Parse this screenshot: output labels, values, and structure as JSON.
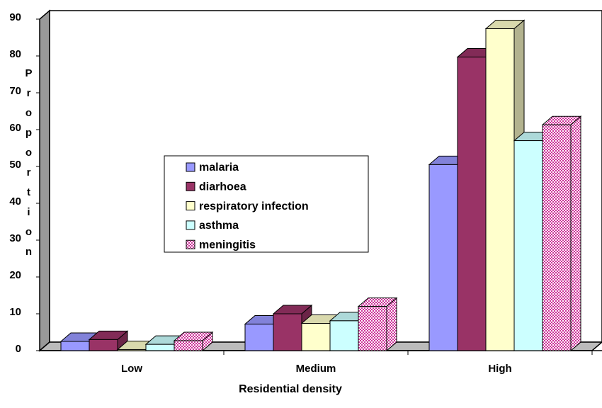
{
  "chart_data": {
    "type": "bar3d",
    "x_label": "Residential density",
    "y_label": "Proportion",
    "categories": [
      "Low",
      "Medium",
      "High"
    ],
    "series": [
      {
        "name": "malaria",
        "color": "#9999ff",
        "values": [
          2.5,
          7.2,
          50.5
        ]
      },
      {
        "name": "diarhoea",
        "color": "#993366",
        "values": [
          3,
          10,
          79.7
        ]
      },
      {
        "name": "respiratory infection",
        "color": "#ffffcc",
        "values": [
          0.3,
          7.4,
          87.4
        ]
      },
      {
        "name": "asthma",
        "color": "#ccffff",
        "values": [
          1.7,
          8.1,
          57
        ]
      },
      {
        "name": "meningitis",
        "color": "#cc3399",
        "values": [
          2.7,
          12,
          61.3
        ]
      }
    ],
    "ylim": [
      0,
      90
    ],
    "yticks": [
      0,
      10,
      20,
      30,
      40,
      50,
      60,
      70,
      80,
      90
    ]
  }
}
